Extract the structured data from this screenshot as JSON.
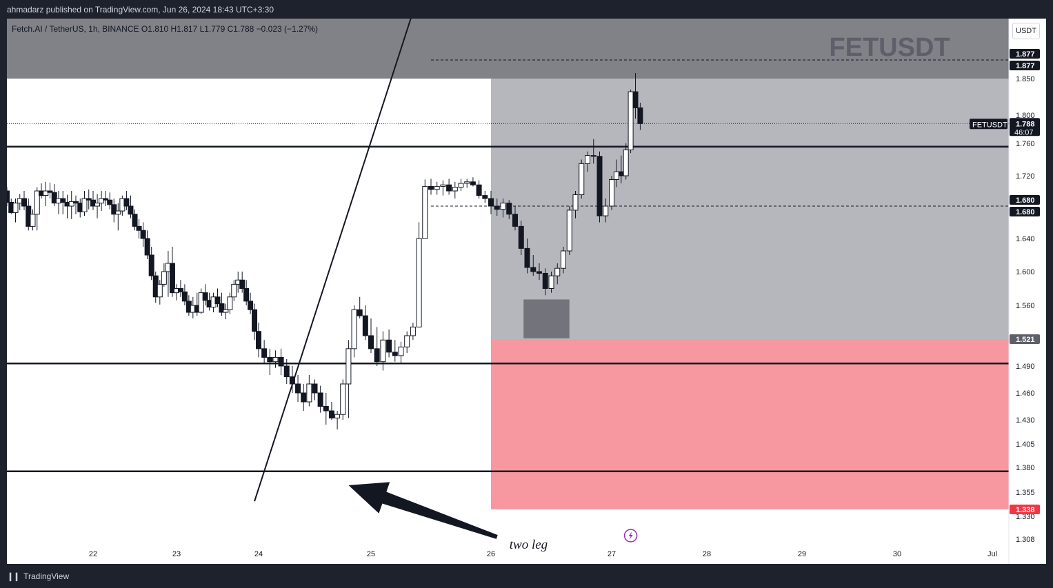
{
  "header": {
    "publisher_line": "ahmadarz published on TradingView.com, Jun 26, 2024 18:43 UTC+3:30"
  },
  "footer": {
    "brand": "TradingView",
    "logo_icon": "tradingview-logo-icon"
  },
  "chart_data": {
    "type": "candlestick",
    "symbol_line": "Fetch.AI / TetherUS, 1h, BINANCE  O1.810  H1.817  L1.779  C1.788  −0.023 (−1.27%)",
    "watermark": "FETUSDT",
    "currency_button": "USDT",
    "y_ticks": [
      1.85,
      1.8,
      1.76,
      1.72,
      1.64,
      1.6,
      1.56,
      1.49,
      1.46,
      1.43,
      1.405,
      1.38,
      1.355,
      1.33,
      1.308
    ],
    "y_tick_labels": [
      "1.850",
      "1.800",
      "1.760",
      "1.720",
      "1.640",
      "1.600",
      "1.560",
      "1.490",
      "1.460",
      "1.430",
      "1.405",
      "1.380",
      "1.355",
      "1.330",
      "1.308"
    ],
    "x_ticks": [
      {
        "label": "22",
        "x": 21.6
      },
      {
        "label": "23",
        "x": 22.6
      },
      {
        "label": "24",
        "x": 23.6
      },
      {
        "label": "25",
        "x": 24.6
      },
      {
        "label": "26",
        "x": 25.6
      },
      {
        "label": "27",
        "x": 26.6
      },
      {
        "label": "28",
        "x": 27.6
      },
      {
        "label": "29",
        "x": 28.6
      },
      {
        "label": "30",
        "x": 29.6
      },
      {
        "label": "Jul",
        "x": 30.6
      }
    ],
    "last_price": {
      "symbol": "FETUSDT",
      "price": "1.788",
      "countdown": "46:07",
      "value": 1.788
    },
    "price_tags": [
      {
        "label": "1.877",
        "value": 1.877,
        "style": "dark"
      },
      {
        "label": "1.877",
        "value": 1.877,
        "style": "dark"
      },
      {
        "label": "1.680",
        "value": 1.68,
        "style": "dark"
      },
      {
        "label": "1.680",
        "value": 1.68,
        "style": "dark"
      },
      {
        "label": "1.521",
        "value": 1.521,
        "style": "gray"
      },
      {
        "label": "1.338",
        "value": 1.338,
        "style": "red"
      }
    ],
    "horizontal_lines": [
      1.756,
      1.493,
      1.376
    ],
    "dashed_levels": [
      1.877,
      1.68
    ],
    "zones": [
      {
        "name": "upper-dark-zone",
        "x_from": 20.6,
        "x_to": 31.2,
        "y_from": 1.85,
        "y_to": 1.92,
        "color": "#808288"
      },
      {
        "name": "gray-zone",
        "x_from": 25.6,
        "x_to": 31.2,
        "y_from": 1.521,
        "y_to": 1.85,
        "color": "#b6b7bd"
      },
      {
        "name": "red-zone",
        "x_from": 25.6,
        "x_to": 31.2,
        "y_from": 1.338,
        "y_to": 1.521,
        "color": "#f7979f"
      },
      {
        "name": "dark-box",
        "x_from": 25.87,
        "x_to": 26.25,
        "y_from": 1.522,
        "y_to": 1.567,
        "color": "#73747b"
      }
    ],
    "trendline": {
      "x1": 23.55,
      "y1": 1.346,
      "x2": 24.95,
      "y2": 1.95
    },
    "annotation": {
      "text": "two leg",
      "x": 25.6,
      "y": 1.31,
      "arrow_from": {
        "x": 25.65,
        "y": 1.31
      },
      "arrow_to": {
        "x": 24.4,
        "y": 1.362
      }
    },
    "lightning_icon": "lightning-icon",
    "candles": [
      [
        20.6,
        1.7,
        1.705,
        1.68,
        1.685
      ],
      [
        20.65,
        1.685,
        1.69,
        1.67,
        1.672
      ],
      [
        20.7,
        1.672,
        1.69,
        1.66,
        1.684
      ],
      [
        20.75,
        1.684,
        1.696,
        1.675,
        1.69
      ],
      [
        20.8,
        1.69,
        1.7,
        1.675,
        1.68
      ],
      [
        20.85,
        1.68,
        1.69,
        1.65,
        1.655
      ],
      [
        20.9,
        1.655,
        1.676,
        1.65,
        1.67
      ],
      [
        20.95,
        1.67,
        1.705,
        1.65,
        1.7
      ],
      [
        21.0,
        1.7,
        1.71,
        1.69,
        1.694
      ],
      [
        21.05,
        1.694,
        1.712,
        1.68,
        1.7
      ],
      [
        21.1,
        1.7,
        1.711,
        1.69,
        1.698
      ],
      [
        21.15,
        1.698,
        1.709,
        1.68,
        1.684
      ],
      [
        21.2,
        1.684,
        1.7,
        1.67,
        1.69
      ],
      [
        21.25,
        1.69,
        1.7,
        1.67,
        1.685
      ],
      [
        21.3,
        1.685,
        1.695,
        1.665,
        1.68
      ],
      [
        21.35,
        1.68,
        1.7,
        1.664,
        1.686
      ],
      [
        21.4,
        1.686,
        1.694,
        1.67,
        1.684
      ],
      [
        21.45,
        1.684,
        1.69,
        1.666,
        1.673
      ],
      [
        21.5,
        1.673,
        1.7,
        1.668,
        1.69
      ],
      [
        21.55,
        1.69,
        1.702,
        1.676,
        1.688
      ],
      [
        21.6,
        1.688,
        1.7,
        1.675,
        1.68
      ],
      [
        21.65,
        1.68,
        1.696,
        1.665,
        1.684
      ],
      [
        21.7,
        1.684,
        1.7,
        1.674,
        1.69
      ],
      [
        21.75,
        1.69,
        1.7,
        1.68,
        1.688
      ],
      [
        21.8,
        1.688,
        1.698,
        1.676,
        1.682
      ],
      [
        21.85,
        1.682,
        1.69,
        1.66,
        1.67
      ],
      [
        21.9,
        1.67,
        1.684,
        1.65,
        1.674
      ],
      [
        21.95,
        1.674,
        1.694,
        1.668,
        1.69
      ],
      [
        22.0,
        1.69,
        1.7,
        1.675,
        1.68
      ],
      [
        22.05,
        1.68,
        1.694,
        1.665,
        1.67
      ],
      [
        22.1,
        1.67,
        1.676,
        1.65,
        1.655
      ],
      [
        22.15,
        1.655,
        1.664,
        1.64,
        1.65
      ],
      [
        22.2,
        1.65,
        1.66,
        1.63,
        1.64
      ],
      [
        22.25,
        1.64,
        1.65,
        1.615,
        1.62
      ],
      [
        22.3,
        1.62,
        1.63,
        1.59,
        1.595
      ],
      [
        22.35,
        1.595,
        1.6,
        1.563,
        1.57
      ],
      [
        22.4,
        1.57,
        1.59,
        1.561,
        1.585
      ],
      [
        22.45,
        1.585,
        1.61,
        1.582,
        1.6
      ],
      [
        22.5,
        1.6,
        1.625,
        1.57,
        1.61
      ],
      [
        22.55,
        1.61,
        1.63,
        1.57,
        1.575
      ],
      [
        22.6,
        1.575,
        1.585,
        1.566,
        1.58
      ],
      [
        22.65,
        1.58,
        1.59,
        1.57,
        1.576
      ],
      [
        22.7,
        1.576,
        1.585,
        1.56,
        1.565
      ],
      [
        22.75,
        1.565,
        1.572,
        1.548,
        1.552
      ],
      [
        22.8,
        1.552,
        1.57,
        1.545,
        1.56
      ],
      [
        22.85,
        1.56,
        1.575,
        1.548,
        1.552
      ],
      [
        22.9,
        1.552,
        1.58,
        1.55,
        1.575
      ],
      [
        22.95,
        1.575,
        1.585,
        1.56,
        1.566
      ],
      [
        23.0,
        1.566,
        1.575,
        1.554,
        1.558
      ],
      [
        23.05,
        1.558,
        1.575,
        1.552,
        1.57
      ],
      [
        23.1,
        1.57,
        1.58,
        1.558,
        1.562
      ],
      [
        23.15,
        1.562,
        1.575,
        1.548,
        1.552
      ],
      [
        23.2,
        1.552,
        1.562,
        1.544,
        1.555
      ],
      [
        23.25,
        1.555,
        1.575,
        1.55,
        1.57
      ],
      [
        23.3,
        1.57,
        1.59,
        1.565,
        1.585
      ],
      [
        23.35,
        1.585,
        1.6,
        1.575,
        1.59
      ],
      [
        23.4,
        1.59,
        1.6,
        1.575,
        1.58
      ],
      [
        23.45,
        1.58,
        1.59,
        1.56,
        1.565
      ],
      [
        23.5,
        1.565,
        1.575,
        1.55,
        1.555
      ],
      [
        23.55,
        1.555,
        1.562,
        1.52,
        1.53
      ],
      [
        23.6,
        1.53,
        1.54,
        1.5,
        1.51
      ],
      [
        23.65,
        1.51,
        1.52,
        1.492,
        1.5
      ],
      [
        23.7,
        1.5,
        1.51,
        1.48,
        1.495
      ],
      [
        23.75,
        1.495,
        1.508,
        1.488,
        1.5
      ],
      [
        23.8,
        1.5,
        1.51,
        1.48,
        1.49
      ],
      [
        23.85,
        1.49,
        1.498,
        1.47,
        1.478
      ],
      [
        23.9,
        1.478,
        1.49,
        1.46,
        1.47
      ],
      [
        23.95,
        1.47,
        1.48,
        1.45,
        1.46
      ],
      [
        24.0,
        1.46,
        1.47,
        1.44,
        1.45
      ],
      [
        24.05,
        1.45,
        1.48,
        1.445,
        1.47
      ],
      [
        24.1,
        1.47,
        1.475,
        1.452,
        1.46
      ],
      [
        24.15,
        1.46,
        1.468,
        1.438,
        1.445
      ],
      [
        24.2,
        1.445,
        1.46,
        1.425,
        1.44
      ],
      [
        24.25,
        1.44,
        1.45,
        1.43,
        1.432
      ],
      [
        24.3,
        1.432,
        1.44,
        1.42,
        1.436
      ],
      [
        24.35,
        1.436,
        1.475,
        1.43,
        1.47
      ],
      [
        24.4,
        1.47,
        1.52,
        1.432,
        1.51
      ],
      [
        24.45,
        1.51,
        1.56,
        1.5,
        1.555
      ],
      [
        24.5,
        1.555,
        1.57,
        1.545,
        1.548
      ],
      [
        24.55,
        1.548,
        1.56,
        1.52,
        1.525
      ],
      [
        24.6,
        1.525,
        1.545,
        1.505,
        1.51
      ],
      [
        24.65,
        1.51,
        1.535,
        1.49,
        1.495
      ],
      [
        24.7,
        1.495,
        1.53,
        1.485,
        1.52
      ],
      [
        24.75,
        1.52,
        1.532,
        1.5,
        1.506
      ],
      [
        24.8,
        1.506,
        1.52,
        1.495,
        1.502
      ],
      [
        24.85,
        1.502,
        1.518,
        1.494,
        1.512
      ],
      [
        24.9,
        1.512,
        1.53,
        1.505,
        1.525
      ],
      [
        24.95,
        1.525,
        1.54,
        1.52,
        1.535
      ],
      [
        25.0,
        1.535,
        1.66,
        1.535,
        1.64
      ],
      [
        25.05,
        1.64,
        1.715,
        1.64,
        1.706
      ],
      [
        25.1,
        1.706,
        1.716,
        1.695,
        1.702
      ],
      [
        25.15,
        1.702,
        1.712,
        1.695,
        1.706
      ],
      [
        25.2,
        1.706,
        1.714,
        1.694,
        1.708
      ],
      [
        25.25,
        1.708,
        1.716,
        1.695,
        1.7
      ],
      [
        25.3,
        1.7,
        1.712,
        1.69,
        1.705
      ],
      [
        25.35,
        1.705,
        1.716,
        1.7,
        1.71
      ],
      [
        25.4,
        1.71,
        1.716,
        1.704,
        1.712
      ],
      [
        25.45,
        1.712,
        1.718,
        1.706,
        1.708
      ],
      [
        25.5,
        1.708,
        1.714,
        1.69,
        1.694
      ],
      [
        25.55,
        1.694,
        1.7,
        1.684,
        1.69
      ],
      [
        25.6,
        1.69,
        1.7,
        1.67,
        1.68
      ],
      [
        25.65,
        1.68,
        1.69,
        1.668,
        1.676
      ],
      [
        25.7,
        1.676,
        1.69,
        1.666,
        1.684
      ],
      [
        25.75,
        1.684,
        1.688,
        1.664,
        1.67
      ],
      [
        25.8,
        1.67,
        1.68,
        1.65,
        1.655
      ],
      [
        25.85,
        1.655,
        1.662,
        1.62,
        1.628
      ],
      [
        25.9,
        1.628,
        1.64,
        1.598,
        1.605
      ],
      [
        25.95,
        1.605,
        1.62,
        1.595,
        1.6
      ],
      [
        26.0,
        1.6,
        1.61,
        1.59,
        1.598
      ],
      [
        26.05,
        1.598,
        1.604,
        1.572,
        1.58
      ],
      [
        26.1,
        1.58,
        1.6,
        1.575,
        1.595
      ],
      [
        26.15,
        1.595,
        1.61,
        1.585,
        1.604
      ],
      [
        26.2,
        1.604,
        1.63,
        1.598,
        1.625
      ],
      [
        26.25,
        1.625,
        1.68,
        1.62,
        1.675
      ],
      [
        26.3,
        1.675,
        1.7,
        1.665,
        1.695
      ],
      [
        26.35,
        1.695,
        1.74,
        1.69,
        1.735
      ],
      [
        26.4,
        1.735,
        1.75,
        1.725,
        1.745
      ],
      [
        26.45,
        1.745,
        1.766,
        1.735,
        1.744
      ],
      [
        26.5,
        1.744,
        1.75,
        1.66,
        1.668
      ],
      [
        26.55,
        1.668,
        1.69,
        1.66,
        1.68
      ],
      [
        26.6,
        1.68,
        1.72,
        1.675,
        1.715
      ],
      [
        26.65,
        1.715,
        1.74,
        1.705,
        1.725
      ],
      [
        26.7,
        1.725,
        1.745,
        1.71,
        1.72
      ],
      [
        26.75,
        1.72,
        1.76,
        1.715,
        1.752
      ],
      [
        26.8,
        1.752,
        1.835,
        1.748,
        1.832
      ],
      [
        26.85,
        1.832,
        1.858,
        1.795,
        1.81
      ],
      [
        26.9,
        1.81,
        1.817,
        1.779,
        1.788
      ]
    ]
  }
}
